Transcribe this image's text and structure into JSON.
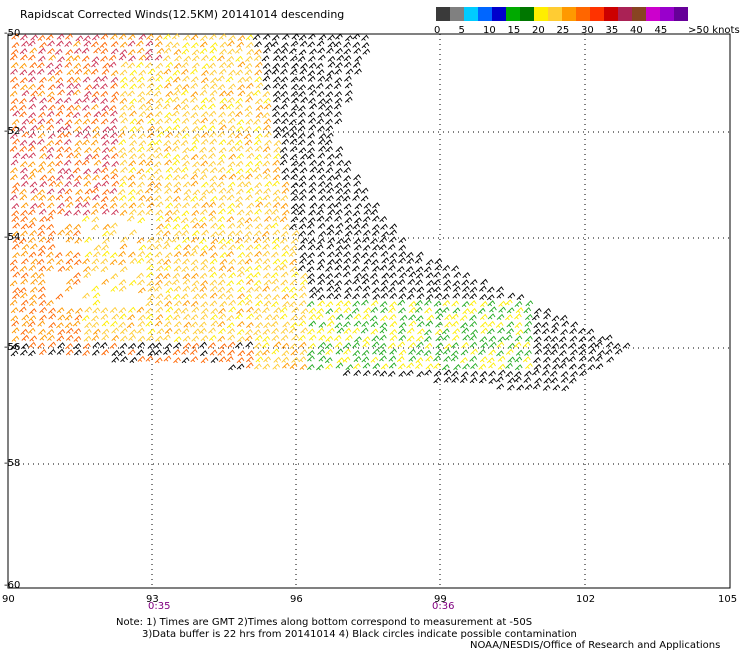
{
  "title": "Rapidscat Corrected Winds(12.5KM) 20141014 descending",
  "colorbar": {
    "colors": [
      "#3a3a3a",
      "#808080",
      "#00ccff",
      "#0066ff",
      "#0000cc",
      "#00aa00",
      "#007700",
      "#ffee00",
      "#ffcc33",
      "#ff9900",
      "#ff6600",
      "#ff3300",
      "#cc0000",
      "#aa2255",
      "#884422",
      "#cc00cc",
      "#9900cc",
      "#660099"
    ],
    "labels": [
      "0",
      "5",
      "10",
      "15",
      "20",
      "25",
      "30",
      "35",
      "40",
      "45",
      ">50 knots"
    ]
  },
  "axes": {
    "lon_ticks": [
      "90",
      "93",
      "96",
      "99",
      "102",
      "105"
    ],
    "lat_ticks": [
      "-50",
      "-52",
      "-54",
      "-56",
      "-58",
      "-60"
    ]
  },
  "times": [
    "0:35",
    "0:36"
  ],
  "notes": {
    "line1": "Note: 1) Times are GMT 2)Times along bottom correspond to measurement at -50S",
    "line2": "3)Data buffer is 22 hrs from 20141014 4) Black circles indicate possible contamination",
    "line3": "NOAA/NESDIS/Office of Research and Applications"
  }
}
